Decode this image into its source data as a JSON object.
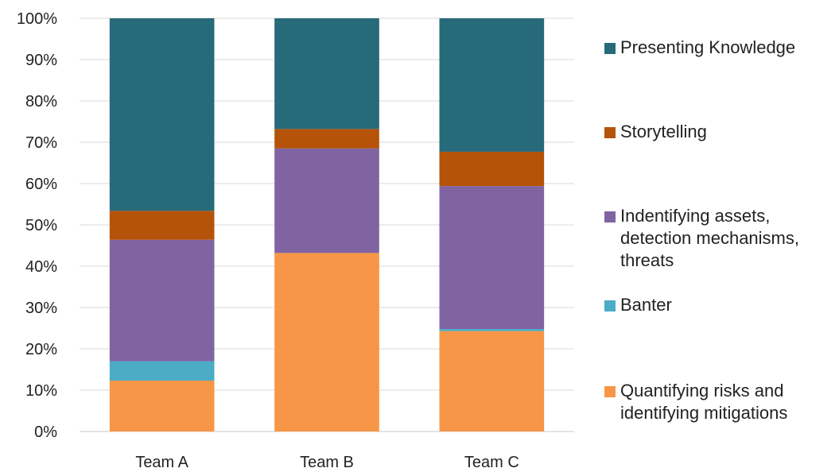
{
  "chart_data": {
    "type": "bar",
    "stacked": true,
    "categories": [
      "Team A",
      "Team B",
      "Team C"
    ],
    "y_ticks": [
      "0%",
      "10%",
      "20%",
      "30%",
      "40%",
      "50%",
      "60%",
      "70%",
      "80%",
      "90%",
      "100%"
    ],
    "ylim": [
      0,
      100
    ],
    "grid": true,
    "legend_position": "right",
    "series": [
      {
        "name": "Quantifying risks and identifying mitigations",
        "color": "#F79646",
        "values": [
          12.3,
          43.2,
          24.3
        ]
      },
      {
        "name": "Banter",
        "color": "#4BACC6",
        "values": [
          4.7,
          0,
          0.5
        ]
      },
      {
        "name": "Indentifying assets, detection mechanisms, threats",
        "color": "#8064A2",
        "values": [
          29.4,
          25.3,
          34.6
        ]
      },
      {
        "name": "Storytelling",
        "color": "#B45309",
        "values": [
          7.0,
          4.7,
          8.3
        ]
      },
      {
        "name": "Presenting Knowledge",
        "color": "#276A7A",
        "values": [
          46.6,
          26.8,
          32.3
        ]
      }
    ],
    "legend_order": [
      4,
      3,
      2,
      1,
      0
    ]
  }
}
